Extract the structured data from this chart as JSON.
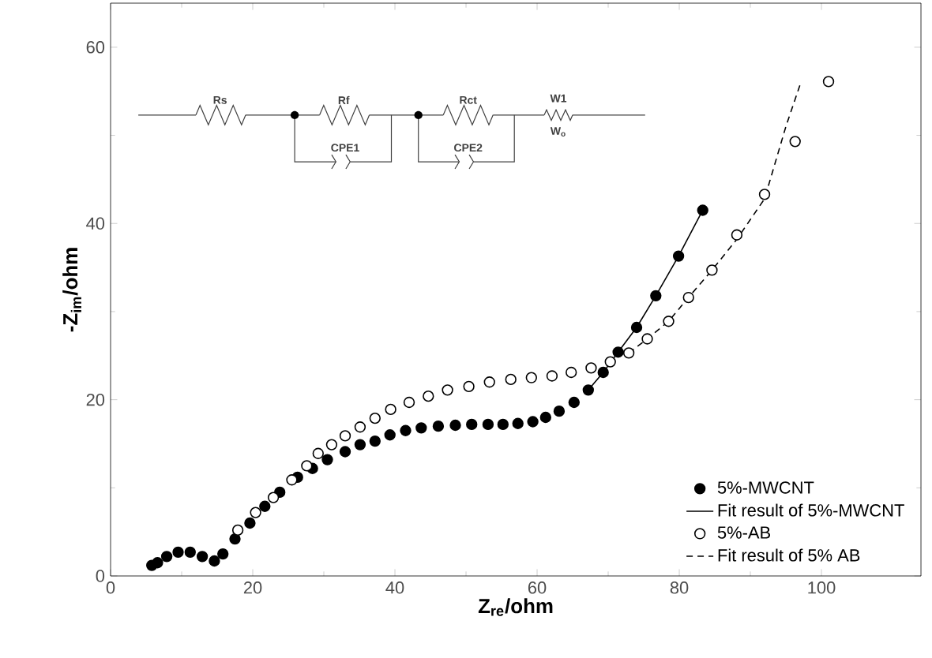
{
  "chart_data": {
    "type": "scatter",
    "xlabel": "Z$_{re}$/ohm",
    "ylabel": "-Z$_{im}$/ohm",
    "xlim": [
      0,
      114
    ],
    "ylim": [
      0,
      65
    ],
    "xticks": [
      0,
      20,
      40,
      60,
      80,
      100
    ],
    "yticks": [
      0,
      20,
      40,
      60
    ],
    "grid": false,
    "legend": "bottom right",
    "annotations": [
      "Rs",
      "Rf",
      "Rct",
      "W1",
      "W$_{o}$",
      "CPE1",
      "CPE2"
    ],
    "series": [
      {
        "name": "5%-MWCNT",
        "color": "#000000",
        "marker": "circle",
        "x": [
          5.8,
          6.6,
          7.9,
          9.5,
          11.2,
          12.9,
          14.6,
          15.8,
          17.5,
          19.6,
          21.7,
          23.8,
          26.3,
          28.4,
          30.5,
          33.0,
          35.1,
          37.2,
          39.3,
          41.5,
          43.7,
          46.1,
          48.5,
          50.8,
          53.1,
          55.2,
          57.3,
          59.4,
          61.2,
          63.1,
          65.2,
          67.2,
          69.3,
          71.4,
          74.0,
          76.7,
          79.9,
          83.3
        ],
        "values": [
          1.2,
          1.5,
          2.2,
          2.7,
          2.7,
          2.2,
          1.7,
          2.5,
          4.2,
          6.0,
          7.9,
          9.5,
          11.2,
          12.2,
          13.2,
          14.1,
          14.9,
          15.3,
          16.0,
          16.5,
          16.8,
          17.0,
          17.1,
          17.2,
          17.2,
          17.2,
          17.3,
          17.5,
          18.0,
          18.7,
          19.7,
          21.1,
          23.1,
          25.4,
          28.2,
          31.8,
          36.3,
          41.5
        ]
      },
      {
        "name": "Fit result of 5%-MWCNT",
        "type": "line",
        "color": "#000000",
        "marker": "none",
        "line_style": "solid",
        "x": [
          67.2,
          69.3,
          71.4,
          74.0,
          76.7,
          79.9,
          83.3
        ],
        "values": [
          21.1,
          23.1,
          25.4,
          28.2,
          31.8,
          36.3,
          41.5
        ]
      },
      {
        "name": "5%-AB",
        "color": "#000000",
        "marker": "circle",
        "x": [
          17.9,
          20.4,
          22.9,
          25.5,
          27.6,
          29.2,
          31.1,
          33.0,
          35.1,
          37.2,
          39.4,
          42.0,
          44.7,
          47.4,
          50.4,
          53.3,
          56.3,
          59.2,
          62.1,
          64.8,
          67.6,
          70.3,
          72.9,
          75.5,
          78.5,
          81.3,
          84.6,
          88.1,
          92.0,
          96.3,
          101.0
        ],
        "values": [
          5.2,
          7.2,
          8.9,
          10.9,
          12.5,
          13.9,
          14.9,
          15.9,
          16.9,
          17.9,
          18.9,
          19.7,
          20.4,
          21.1,
          21.5,
          22.0,
          22.3,
          22.5,
          22.7,
          23.1,
          23.6,
          24.3,
          25.3,
          26.9,
          28.9,
          31.6,
          34.7,
          38.7,
          43.3,
          49.3,
          56.1
        ]
      },
      {
        "name": "Fit result of 5% AB",
        "type": "line",
        "color": "#000000",
        "marker": "none",
        "line_style": "dashed",
        "x": [
          72.9,
          75.5,
          78.5,
          81.3,
          84.6,
          88.1,
          92.0,
          95.0,
          97.1
        ],
        "values": [
          25.3,
          26.9,
          28.9,
          31.6,
          34.7,
          38.2,
          42.8,
          51.0,
          56.0
        ]
      }
    ]
  }
}
